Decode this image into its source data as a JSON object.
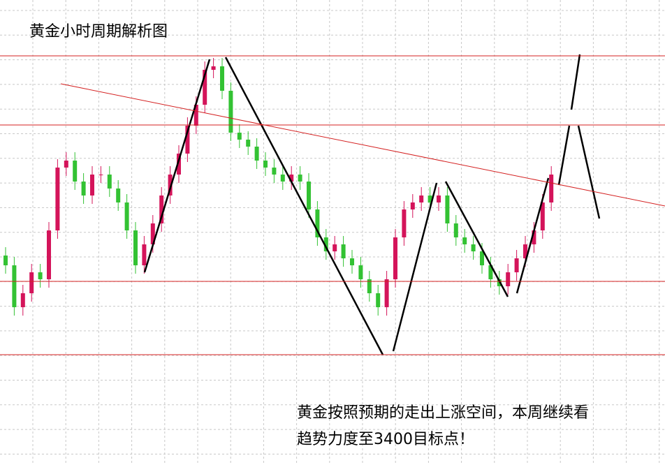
{
  "chart_data": {
    "type": "candlestick",
    "title": "黄金小时周期解析图",
    "annotation": [
      "黄金按照预期的走出上涨空间，本周继续看",
      "趋势力度至3400目标点！"
    ],
    "ylim": [
      0,
      666
    ],
    "up_color": "#d4145a",
    "down_color": "#33c233",
    "levels": [
      586,
      487,
      263,
      158
    ],
    "level_color": "#d42020",
    "trendline": [
      546,
      371
    ],
    "open": [
      300,
      286,
      226,
      246,
      276,
      266,
      336,
      426,
      436,
      406,
      386,
      416,
      416,
      396,
      376,
      336,
      286,
      316,
      346,
      386,
      416,
      446,
      486,
      516,
      566,
      571,
      536,
      476,
      466,
      456,
      436,
      426,
      416,
      406,
      416,
      406,
      366,
      326,
      306,
      316,
      296,
      286,
      266,
      246,
      226,
      266,
      326,
      366,
      376,
      386,
      376,
      386,
      346,
      326,
      316,
      306,
      286,
      266,
      256,
      276,
      296,
      316,
      336,
      376
    ],
    "high": [
      312,
      298,
      258,
      288,
      288,
      348,
      438,
      448,
      448,
      418,
      428,
      428,
      428,
      408,
      388,
      348,
      328,
      358,
      398,
      428,
      458,
      498,
      528,
      578,
      583,
      583,
      548,
      488,
      478,
      468,
      448,
      438,
      428,
      428,
      428,
      418,
      378,
      338,
      328,
      328,
      308,
      298,
      278,
      258,
      278,
      338,
      378,
      388,
      398,
      398,
      398,
      398,
      358,
      338,
      328,
      318,
      298,
      278,
      288,
      308,
      328,
      348,
      388,
      428
    ],
    "low": [
      274,
      214,
      214,
      234,
      254,
      254,
      324,
      414,
      394,
      374,
      374,
      404,
      384,
      364,
      324,
      274,
      274,
      304,
      334,
      374,
      404,
      434,
      474,
      504,
      554,
      524,
      464,
      454,
      444,
      424,
      414,
      404,
      394,
      394,
      394,
      354,
      314,
      294,
      294,
      284,
      274,
      254,
      234,
      214,
      214,
      254,
      314,
      354,
      364,
      364,
      364,
      334,
      314,
      304,
      294,
      274,
      254,
      244,
      244,
      264,
      284,
      304,
      324,
      364
    ],
    "close": [
      286,
      226,
      246,
      276,
      266,
      336,
      426,
      436,
      406,
      386,
      416,
      416,
      396,
      376,
      336,
      286,
      316,
      346,
      386,
      416,
      446,
      486,
      516,
      566,
      571,
      536,
      476,
      466,
      456,
      436,
      426,
      416,
      406,
      416,
      406,
      366,
      326,
      306,
      316,
      296,
      286,
      266,
      246,
      226,
      266,
      326,
      366,
      376,
      386,
      376,
      386,
      346,
      326,
      316,
      306,
      286,
      266,
      256,
      276,
      296,
      316,
      336,
      376,
      416
    ]
  }
}
